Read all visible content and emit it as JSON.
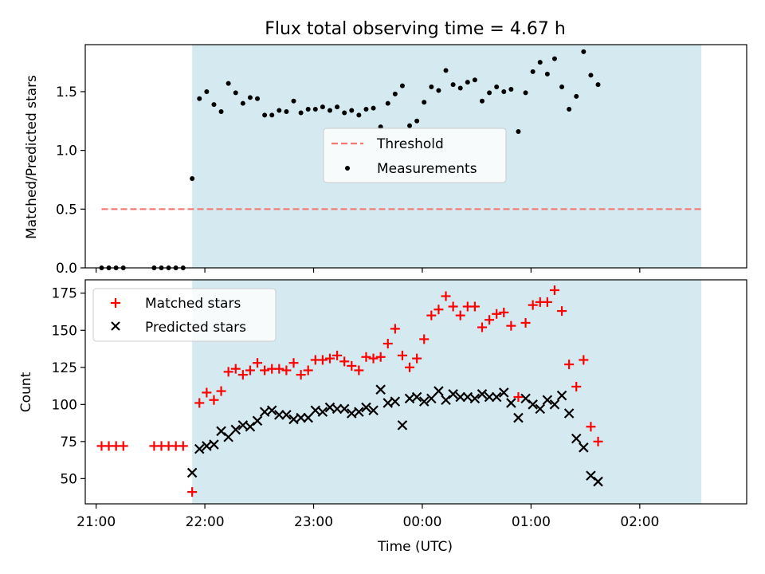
{
  "chart_data": [
    {
      "type": "scatter",
      "title": "Flux total observing time = 4.67 h",
      "xlabel": "",
      "ylabel": "Matched/Predicted stars",
      "xlim": [
        "20:54",
        "02:59"
      ],
      "ylim": [
        0,
        1.9
      ],
      "yticks": [
        0.0,
        0.5,
        1.0,
        1.5
      ],
      "ytick_labels": [
        "0.0",
        "0.5",
        "1.0",
        "1.5"
      ],
      "legend_placement": "center",
      "grid": false,
      "shaded_region": {
        "x_start": "21:53",
        "x_end": "02:34",
        "color": "#d4e9f0"
      },
      "threshold": {
        "name": "Threshold",
        "value": 0.5,
        "x_start": "21:03",
        "x_end": "02:34",
        "color": "#f07a76",
        "style": "dashed"
      },
      "series": [
        {
          "name": "Measurements",
          "color": "#000000",
          "marker": "dot",
          "points": [
            [
              "21:03",
              0.0
            ],
            [
              "21:07",
              0.0
            ],
            [
              "21:11",
              0.0
            ],
            [
              "21:15",
              0.0
            ],
            [
              "21:32",
              0.0
            ],
            [
              "21:36",
              0.0
            ],
            [
              "21:40",
              0.0
            ],
            [
              "21:44",
              0.0
            ],
            [
              "21:48",
              0.0
            ],
            [
              "21:53",
              0.76
            ],
            [
              "21:57",
              1.44
            ],
            [
              "22:01",
              1.5
            ],
            [
              "22:05",
              1.39
            ],
            [
              "22:09",
              1.33
            ],
            [
              "22:13",
              1.57
            ],
            [
              "22:17",
              1.49
            ],
            [
              "22:21",
              1.4
            ],
            [
              "22:25",
              1.45
            ],
            [
              "22:29",
              1.44
            ],
            [
              "22:33",
              1.3
            ],
            [
              "22:37",
              1.3
            ],
            [
              "22:41",
              1.34
            ],
            [
              "22:45",
              1.33
            ],
            [
              "22:49",
              1.42
            ],
            [
              "22:53",
              1.32
            ],
            [
              "22:57",
              1.35
            ],
            [
              "23:01",
              1.35
            ],
            [
              "23:05",
              1.37
            ],
            [
              "23:09",
              1.34
            ],
            [
              "23:13",
              1.37
            ],
            [
              "23:17",
              1.32
            ],
            [
              "23:21",
              1.34
            ],
            [
              "23:25",
              1.3
            ],
            [
              "23:29",
              1.35
            ],
            [
              "23:33",
              1.36
            ],
            [
              "23:37",
              1.2
            ],
            [
              "23:41",
              1.4
            ],
            [
              "23:45",
              1.48
            ],
            [
              "23:49",
              1.55
            ],
            [
              "23:53",
              1.21
            ],
            [
              "23:57",
              1.25
            ],
            [
              "00:01",
              1.41
            ],
            [
              "00:05",
              1.54
            ],
            [
              "00:09",
              1.51
            ],
            [
              "00:13",
              1.68
            ],
            [
              "00:17",
              1.56
            ],
            [
              "00:21",
              1.53
            ],
            [
              "00:25",
              1.58
            ],
            [
              "00:29",
              1.6
            ],
            [
              "00:33",
              1.42
            ],
            [
              "00:37",
              1.49
            ],
            [
              "00:41",
              1.54
            ],
            [
              "00:45",
              1.5
            ],
            [
              "00:49",
              1.52
            ],
            [
              "00:53",
              1.16
            ],
            [
              "00:57",
              1.49
            ],
            [
              "01:01",
              1.67
            ],
            [
              "01:05",
              1.75
            ],
            [
              "01:09",
              1.65
            ],
            [
              "01:13",
              1.78
            ],
            [
              "01:17",
              1.54
            ],
            [
              "01:21",
              1.35
            ],
            [
              "01:25",
              1.46
            ],
            [
              "01:29",
              1.84
            ],
            [
              "01:33",
              1.64
            ],
            [
              "01:37",
              1.56
            ]
          ]
        }
      ]
    },
    {
      "type": "scatter",
      "title": "",
      "xlabel": "Time (UTC)",
      "ylabel": "Count",
      "xlim": [
        "20:54",
        "02:59"
      ],
      "ylim": [
        33,
        184
      ],
      "yticks": [
        50,
        75,
        100,
        125,
        150,
        175
      ],
      "ytick_labels": [
        "50",
        "75",
        "100",
        "125",
        "150",
        "175"
      ],
      "xticks": [
        "21:00",
        "22:00",
        "23:00",
        "00:00",
        "01:00",
        "02:00"
      ],
      "legend_placement": "upper left",
      "grid": false,
      "shaded_region": {
        "x_start": "21:53",
        "x_end": "02:34",
        "color": "#d4e9f0"
      },
      "series": [
        {
          "name": "Matched stars",
          "color": "#ff0000",
          "marker": "plus",
          "points": [
            [
              "21:03",
              72
            ],
            [
              "21:07",
              72
            ],
            [
              "21:11",
              72
            ],
            [
              "21:15",
              72
            ],
            [
              "21:32",
              72
            ],
            [
              "21:36",
              72
            ],
            [
              "21:40",
              72
            ],
            [
              "21:44",
              72
            ],
            [
              "21:48",
              72
            ],
            [
              "21:53",
              41
            ],
            [
              "21:57",
              101
            ],
            [
              "22:01",
              108
            ],
            [
              "22:05",
              103
            ],
            [
              "22:09",
              109
            ],
            [
              "22:13",
              122
            ],
            [
              "22:17",
              124
            ],
            [
              "22:21",
              120
            ],
            [
              "22:25",
              123
            ],
            [
              "22:29",
              128
            ],
            [
              "22:33",
              123
            ],
            [
              "22:37",
              124
            ],
            [
              "22:41",
              124
            ],
            [
              "22:45",
              123
            ],
            [
              "22:49",
              128
            ],
            [
              "22:53",
              120
            ],
            [
              "22:57",
              123
            ],
            [
              "23:01",
              130
            ],
            [
              "23:05",
              130
            ],
            [
              "23:09",
              131
            ],
            [
              "23:13",
              133
            ],
            [
              "23:17",
              129
            ],
            [
              "23:21",
              126
            ],
            [
              "23:25",
              123
            ],
            [
              "23:29",
              132
            ],
            [
              "23:33",
              131
            ],
            [
              "23:37",
              132
            ],
            [
              "23:41",
              141
            ],
            [
              "23:45",
              151
            ],
            [
              "23:49",
              133
            ],
            [
              "23:53",
              125
            ],
            [
              "23:57",
              131
            ],
            [
              "00:01",
              144
            ],
            [
              "00:05",
              160
            ],
            [
              "00:09",
              164
            ],
            [
              "00:13",
              173
            ],
            [
              "00:17",
              166
            ],
            [
              "00:21",
              160
            ],
            [
              "00:25",
              166
            ],
            [
              "00:29",
              166
            ],
            [
              "00:33",
              152
            ],
            [
              "00:37",
              157
            ],
            [
              "00:41",
              161
            ],
            [
              "00:45",
              162
            ],
            [
              "00:49",
              153
            ],
            [
              "00:53",
              105
            ],
            [
              "00:57",
              155
            ],
            [
              "01:01",
              167
            ],
            [
              "01:05",
              169
            ],
            [
              "01:09",
              169
            ],
            [
              "01:13",
              177
            ],
            [
              "01:17",
              163
            ],
            [
              "01:21",
              127
            ],
            [
              "01:25",
              112
            ],
            [
              "01:29",
              130
            ],
            [
              "01:33",
              85
            ],
            [
              "01:37",
              75
            ]
          ]
        },
        {
          "name": "Predicted stars",
          "color": "#000000",
          "marker": "cross",
          "points": [
            [
              "21:53",
              54
            ],
            [
              "21:57",
              70
            ],
            [
              "22:01",
              72
            ],
            [
              "22:05",
              73
            ],
            [
              "22:09",
              82
            ],
            [
              "22:13",
              78
            ],
            [
              "22:17",
              83
            ],
            [
              "22:21",
              86
            ],
            [
              "22:25",
              85
            ],
            [
              "22:29",
              89
            ],
            [
              "22:33",
              95
            ],
            [
              "22:37",
              96
            ],
            [
              "22:41",
              93
            ],
            [
              "22:45",
              93
            ],
            [
              "22:49",
              90
            ],
            [
              "22:53",
              91
            ],
            [
              "22:57",
              91
            ],
            [
              "23:01",
              96
            ],
            [
              "23:05",
              95
            ],
            [
              "23:09",
              98
            ],
            [
              "23:13",
              97
            ],
            [
              "23:17",
              97
            ],
            [
              "23:21",
              94
            ],
            [
              "23:25",
              95
            ],
            [
              "23:29",
              98
            ],
            [
              "23:33",
              96
            ],
            [
              "23:37",
              110
            ],
            [
              "23:41",
              101
            ],
            [
              "23:45",
              102
            ],
            [
              "23:49",
              86
            ],
            [
              "23:53",
              104
            ],
            [
              "23:57",
              105
            ],
            [
              "00:01",
              102
            ],
            [
              "00:05",
              104
            ],
            [
              "00:09",
              109
            ],
            [
              "00:13",
              103
            ],
            [
              "00:17",
              107
            ],
            [
              "00:21",
              105
            ],
            [
              "00:25",
              105
            ],
            [
              "00:29",
              104
            ],
            [
              "00:33",
              107
            ],
            [
              "00:37",
              105
            ],
            [
              "00:41",
              105
            ],
            [
              "00:45",
              108
            ],
            [
              "00:49",
              101
            ],
            [
              "00:53",
              91
            ],
            [
              "00:57",
              104
            ],
            [
              "01:01",
              100
            ],
            [
              "01:05",
              97
            ],
            [
              "01:09",
              103
            ],
            [
              "01:13",
              100
            ],
            [
              "01:17",
              106
            ],
            [
              "01:21",
              94
            ],
            [
              "01:25",
              77
            ],
            [
              "01:29",
              71
            ],
            [
              "01:33",
              52
            ],
            [
              "01:37",
              48
            ]
          ]
        }
      ]
    }
  ]
}
